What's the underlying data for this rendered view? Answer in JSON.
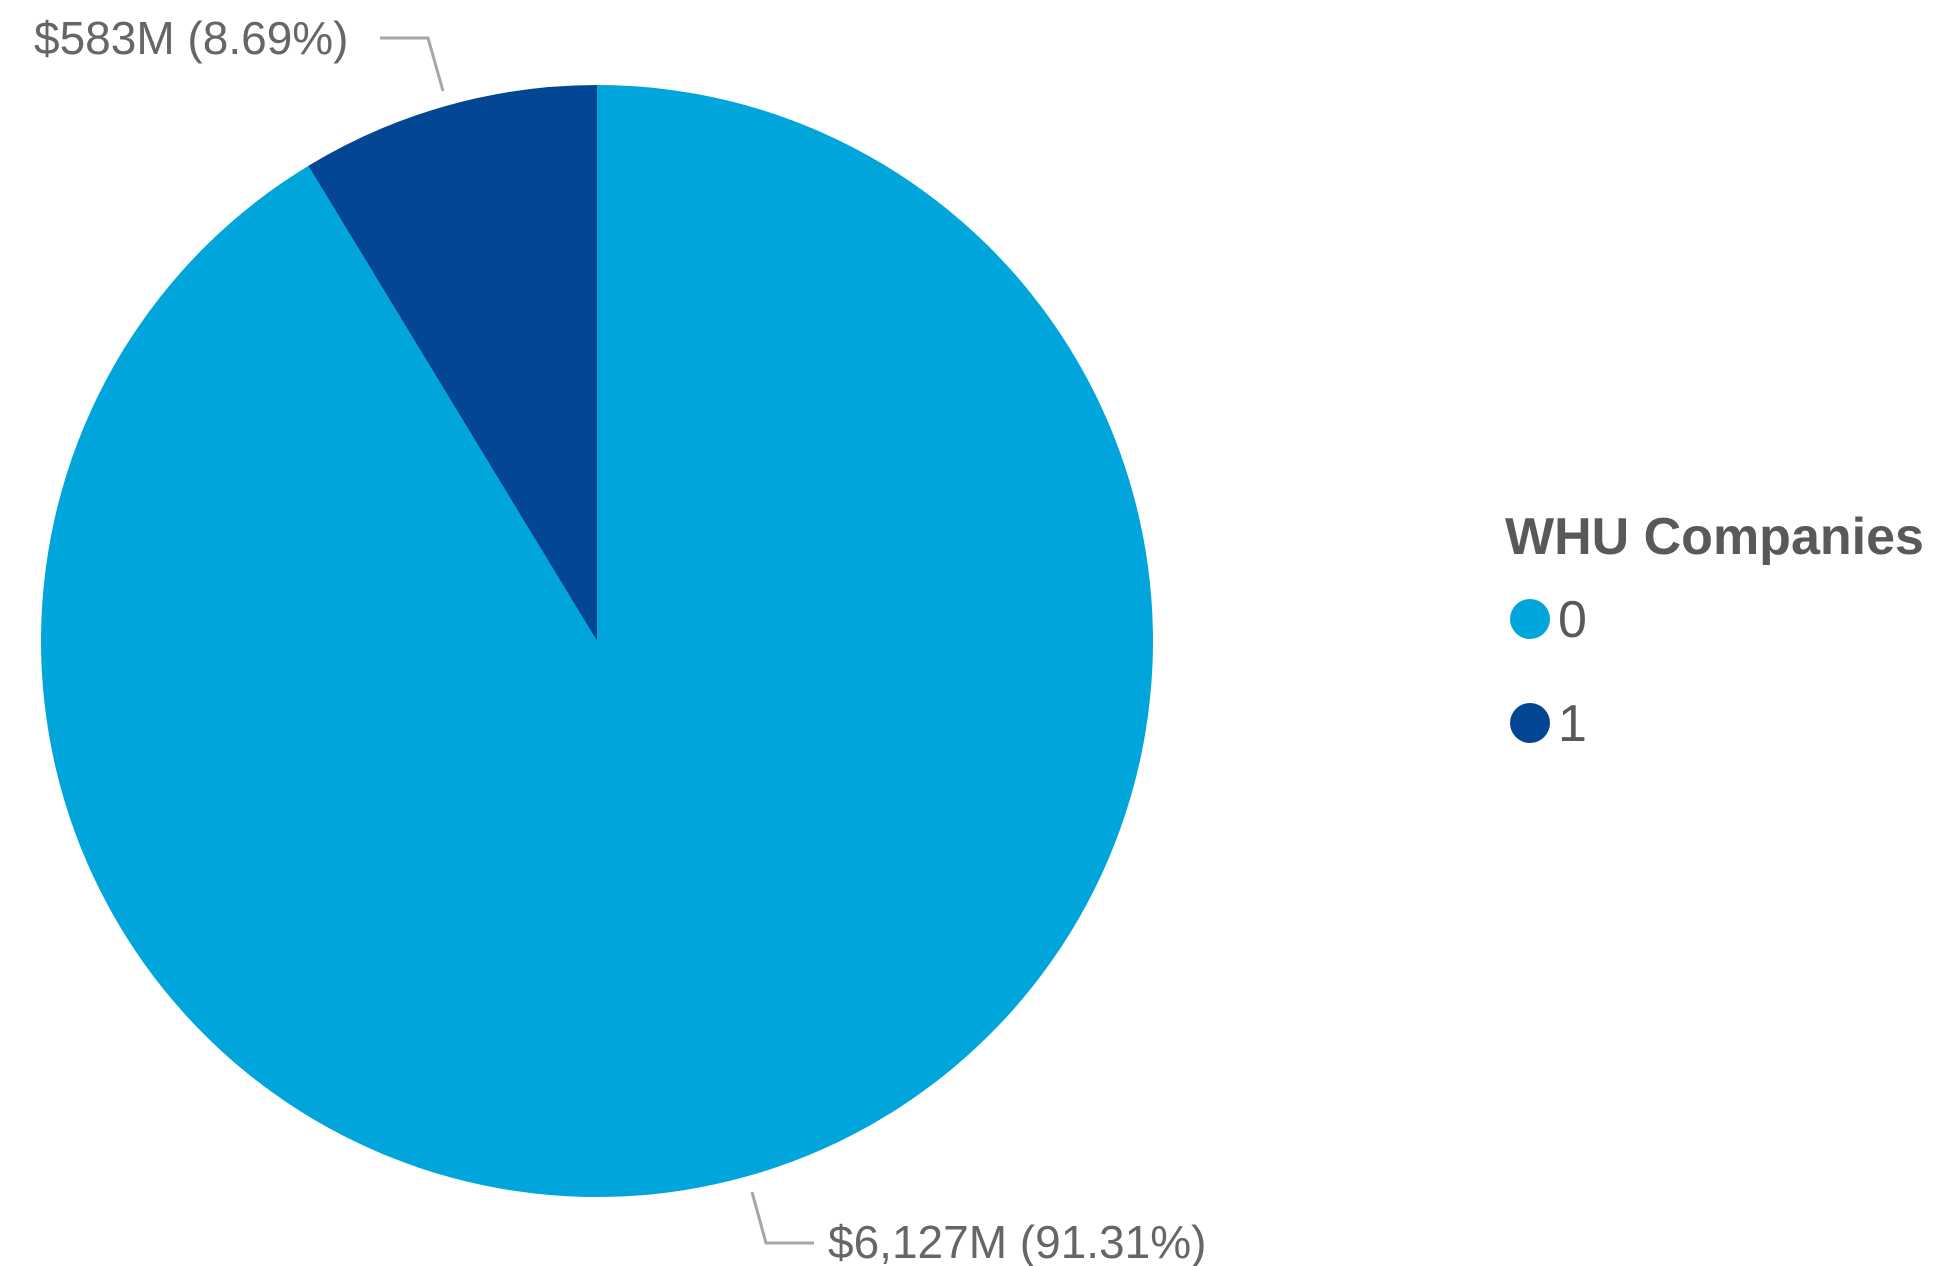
{
  "chart_data": {
    "type": "pie",
    "legend_title": "WHU Companies",
    "legend_position": "right",
    "slices": [
      {
        "category": "0",
        "value": 6127,
        "percent": 91.31,
        "label": "$6,127M (91.31%)",
        "color": "#00A5DB"
      },
      {
        "category": "1",
        "value": 583,
        "percent": 8.69,
        "label": "$583M (8.69%)",
        "color": "#034694"
      }
    ]
  }
}
